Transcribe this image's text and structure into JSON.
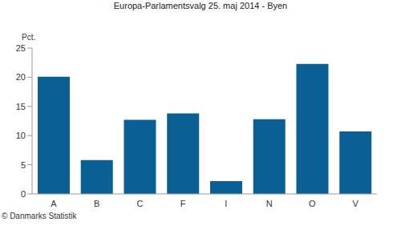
{
  "chart_data": {
    "type": "bar",
    "title": "Europa-Parlamentsvalg 25. maj 2014 - Byen",
    "y_label": "Pct.",
    "annotations": [
      "© Danmarks Statistik"
    ],
    "categories": [
      "A",
      "B",
      "C",
      "F",
      "I",
      "N",
      "O",
      "V"
    ],
    "values": [
      20.1,
      5.8,
      12.7,
      13.8,
      2.2,
      12.8,
      22.3,
      10.7
    ],
    "color": "#0a5f95",
    "ylim": [
      0,
      25
    ],
    "yticks": [
      0,
      5,
      10,
      15,
      20,
      25
    ],
    "grid": false
  }
}
